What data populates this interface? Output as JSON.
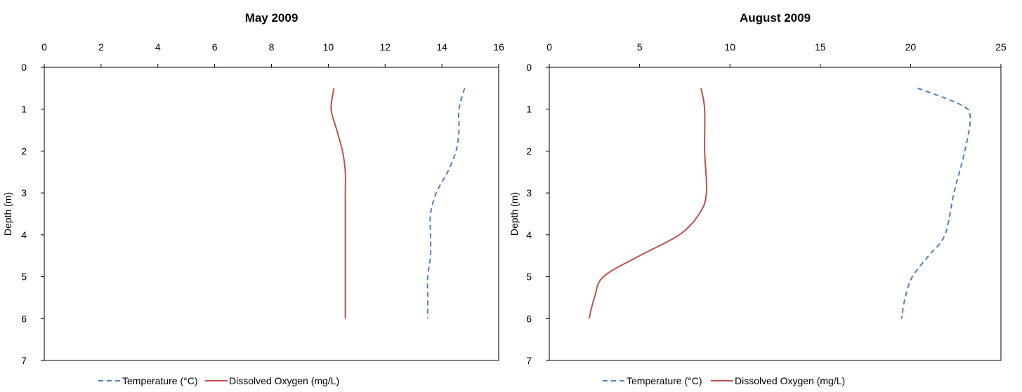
{
  "colors": {
    "temperature": "#4f81bd",
    "oxygen": "#c0504d",
    "axis": "#000000"
  },
  "chart_data": [
    {
      "type": "line",
      "title": "May 2009",
      "xlabel": "",
      "ylabel": "Depth (m)",
      "xlim": [
        0,
        16
      ],
      "ylim": [
        0,
        7
      ],
      "y_inverted": true,
      "x_axis_position": "top",
      "xticks": [
        "0",
        "2",
        "4",
        "6",
        "8",
        "10",
        "12",
        "14",
        "16"
      ],
      "yticks": [
        "0",
        "1",
        "2",
        "3",
        "4",
        "5",
        "6",
        "7"
      ],
      "legend": "bottom",
      "grid": false,
      "series": [
        {
          "name": "Temperature (°C)",
          "style": "dashed",
          "color": "#4f81bd",
          "points": [
            [
              14.8,
              0.5
            ],
            [
              14.6,
              1.0
            ],
            [
              14.6,
              1.5
            ],
            [
              14.5,
              2.0
            ],
            [
              14.2,
              2.5
            ],
            [
              13.8,
              3.0
            ],
            [
              13.6,
              3.5
            ],
            [
              13.6,
              4.0
            ],
            [
              13.6,
              4.5
            ],
            [
              13.5,
              5.0
            ],
            [
              13.5,
              5.5
            ],
            [
              13.5,
              6.0
            ]
          ]
        },
        {
          "name": "Dissolved Oxygen (mg/L)",
          "style": "solid",
          "color": "#c0504d",
          "points": [
            [
              10.2,
              0.5
            ],
            [
              10.1,
              1.0
            ],
            [
              10.3,
              1.5
            ],
            [
              10.5,
              2.0
            ],
            [
              10.6,
              2.5
            ],
            [
              10.6,
              3.0
            ],
            [
              10.6,
              3.5
            ],
            [
              10.6,
              4.0
            ],
            [
              10.6,
              4.5
            ],
            [
              10.6,
              5.0
            ],
            [
              10.6,
              5.5
            ],
            [
              10.6,
              6.0
            ]
          ]
        }
      ]
    },
    {
      "type": "line",
      "title": "August 2009",
      "xlabel": "",
      "ylabel": "Depth (m)",
      "xlim": [
        0,
        25
      ],
      "ylim": [
        0,
        7
      ],
      "y_inverted": true,
      "x_axis_position": "top",
      "xticks": [
        "0",
        "5",
        "10",
        "15",
        "20",
        "25"
      ],
      "yticks": [
        "0",
        "1",
        "2",
        "3",
        "4",
        "5",
        "6",
        "7"
      ],
      "legend": "bottom",
      "grid": false,
      "series": [
        {
          "name": "Temperature (°C)",
          "style": "dashed",
          "color": "#4f81bd",
          "points": [
            [
              20.4,
              0.5
            ],
            [
              22.8,
              0.9
            ],
            [
              23.3,
              1.2
            ],
            [
              23.0,
              2.0
            ],
            [
              22.4,
              3.0
            ],
            [
              21.9,
              4.0
            ],
            [
              21.0,
              4.5
            ],
            [
              20.1,
              5.0
            ],
            [
              19.7,
              5.5
            ],
            [
              19.5,
              6.0
            ]
          ]
        },
        {
          "name": "Dissolved Oxygen (mg/L)",
          "style": "solid",
          "color": "#c0504d",
          "points": [
            [
              8.4,
              0.5
            ],
            [
              8.6,
              1.0
            ],
            [
              8.6,
              2.0
            ],
            [
              8.7,
              3.0
            ],
            [
              8.3,
              3.5
            ],
            [
              7.2,
              4.0
            ],
            [
              5.0,
              4.5
            ],
            [
              3.0,
              5.0
            ],
            [
              2.5,
              5.5
            ],
            [
              2.2,
              6.0
            ]
          ]
        }
      ]
    }
  ]
}
